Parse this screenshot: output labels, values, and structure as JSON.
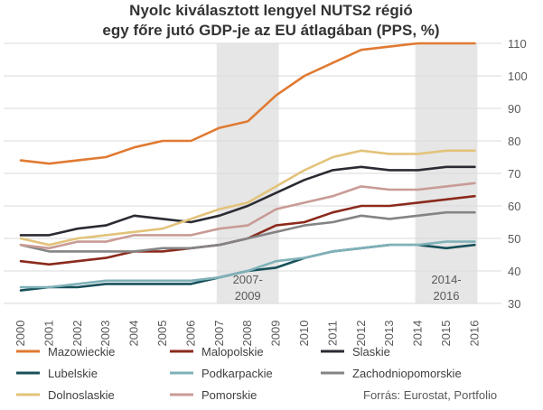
{
  "chart_data": {
    "type": "line",
    "title": [
      "Nyolc kiválasztott lengyel NUTS2 régió",
      "egy főre jutó GDP-je az EU átlagában (PPS, %)"
    ],
    "x": [
      "2000",
      "2001",
      "2002",
      "2003",
      "2004",
      "2005",
      "2006",
      "2007",
      "2008",
      "2009",
      "2010",
      "2011",
      "2012",
      "2013",
      "2014",
      "2015",
      "2016"
    ],
    "ylim": [
      30,
      110
    ],
    "yticks": [
      30,
      40,
      50,
      60,
      70,
      80,
      90,
      100,
      110
    ],
    "y_axis_side": "right",
    "grid": "horizontal",
    "shaded_periods": [
      {
        "from": "2007",
        "to": "2009",
        "label": [
          "2007-",
          "2009"
        ]
      },
      {
        "from": "2014",
        "to": "2016",
        "label": [
          "2014-",
          "2016"
        ]
      }
    ],
    "series": [
      {
        "name": "Mazowieckie",
        "color": "#e07a32",
        "values": [
          74,
          73,
          74,
          75,
          78,
          80,
          80,
          84,
          86,
          94,
          100,
          104,
          108,
          109,
          110,
          110,
          110
        ]
      },
      {
        "name": "Malopolskie",
        "color": "#8b2a1c",
        "values": [
          43,
          42,
          43,
          44,
          46,
          46,
          47,
          48,
          50,
          54,
          55,
          58,
          60,
          60,
          61,
          62,
          63
        ]
      },
      {
        "name": "Slaskie",
        "color": "#2b2b33",
        "values": [
          51,
          51,
          53,
          54,
          57,
          56,
          55,
          57,
          60,
          64,
          68,
          71,
          72,
          71,
          71,
          72,
          72
        ]
      },
      {
        "name": "Lubelskie",
        "color": "#17505a",
        "values": [
          34,
          35,
          35,
          36,
          36,
          36,
          36,
          38,
          40,
          41,
          44,
          46,
          47,
          48,
          48,
          47,
          48
        ]
      },
      {
        "name": "Podkarpackie",
        "color": "#7fb1b8",
        "values": [
          35,
          35,
          36,
          37,
          37,
          37,
          37,
          38,
          40,
          43,
          44,
          46,
          47,
          48,
          48,
          49,
          49
        ]
      },
      {
        "name": "Zachodniopomorskie",
        "color": "#848484",
        "values": [
          48,
          46,
          46,
          46,
          46,
          47,
          47,
          48,
          50,
          52,
          54,
          55,
          57,
          56,
          57,
          58,
          58
        ]
      },
      {
        "name": "Dolnoslaskie",
        "color": "#e2c37a",
        "values": [
          50,
          48,
          50,
          51,
          52,
          53,
          56,
          59,
          61,
          66,
          71,
          75,
          77,
          76,
          76,
          77,
          77
        ]
      },
      {
        "name": "Pomorskie",
        "color": "#c99b96",
        "values": [
          48,
          47,
          49,
          49,
          51,
          51,
          51,
          53,
          54,
          59,
          61,
          63,
          66,
          65,
          65,
          66,
          67
        ]
      }
    ],
    "legend_position": "bottom",
    "source": "Forrás: Eurostat, Portfolio"
  }
}
